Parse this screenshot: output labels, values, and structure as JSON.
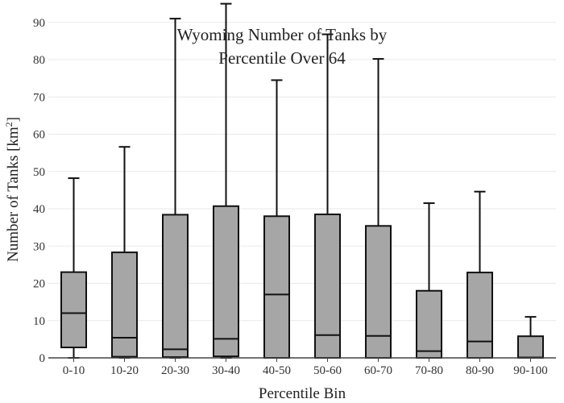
{
  "chart_data": {
    "type": "box",
    "title_lines": [
      "Wyoming Number of Tanks by",
      "Percentile Over 64"
    ],
    "xlabel": "Percentile Bin",
    "ylabel_main": "Number of Tanks  [km",
    "ylabel_sup": "2",
    "ylabel_end": "]",
    "ylim": [
      0,
      96
    ],
    "yticks": [
      0,
      10,
      20,
      30,
      40,
      50,
      60,
      70,
      80,
      90
    ],
    "grid": true,
    "box_color": "#a6a6a6",
    "line_color": "#111111",
    "categories": [
      "0-10",
      "10-20",
      "20-30",
      "30-40",
      "40-50",
      "50-60",
      "60-70",
      "70-80",
      "80-90",
      "90-100"
    ],
    "boxes": [
      {
        "min": 0,
        "q1": 2.8,
        "median": 12,
        "q3": 23,
        "max": 48.2
      },
      {
        "min": 0,
        "q1": 0.3,
        "median": 5.4,
        "q3": 28.3,
        "max": 56.6
      },
      {
        "min": 0,
        "q1": 0.2,
        "median": 2.3,
        "q3": 38.4,
        "max": 91
      },
      {
        "min": 0,
        "q1": 0.4,
        "median": 5.1,
        "q3": 40.7,
        "max": 95
      },
      {
        "min": 0,
        "q1": 0,
        "median": 17,
        "q3": 38,
        "max": 74.5
      },
      {
        "min": 0,
        "q1": 0,
        "median": 6.1,
        "q3": 38.5,
        "max": 86.8
      },
      {
        "min": 0,
        "q1": 0,
        "median": 5.9,
        "q3": 35.4,
        "max": 80.2
      },
      {
        "min": 0,
        "q1": 0,
        "median": 1.8,
        "q3": 18,
        "max": 41.5
      },
      {
        "min": 0,
        "q1": 0,
        "median": 4.4,
        "q3": 22.9,
        "max": 44.6
      },
      {
        "min": 0,
        "q1": 0,
        "median": 0.1,
        "q3": 5.8,
        "max": 11
      }
    ]
  }
}
